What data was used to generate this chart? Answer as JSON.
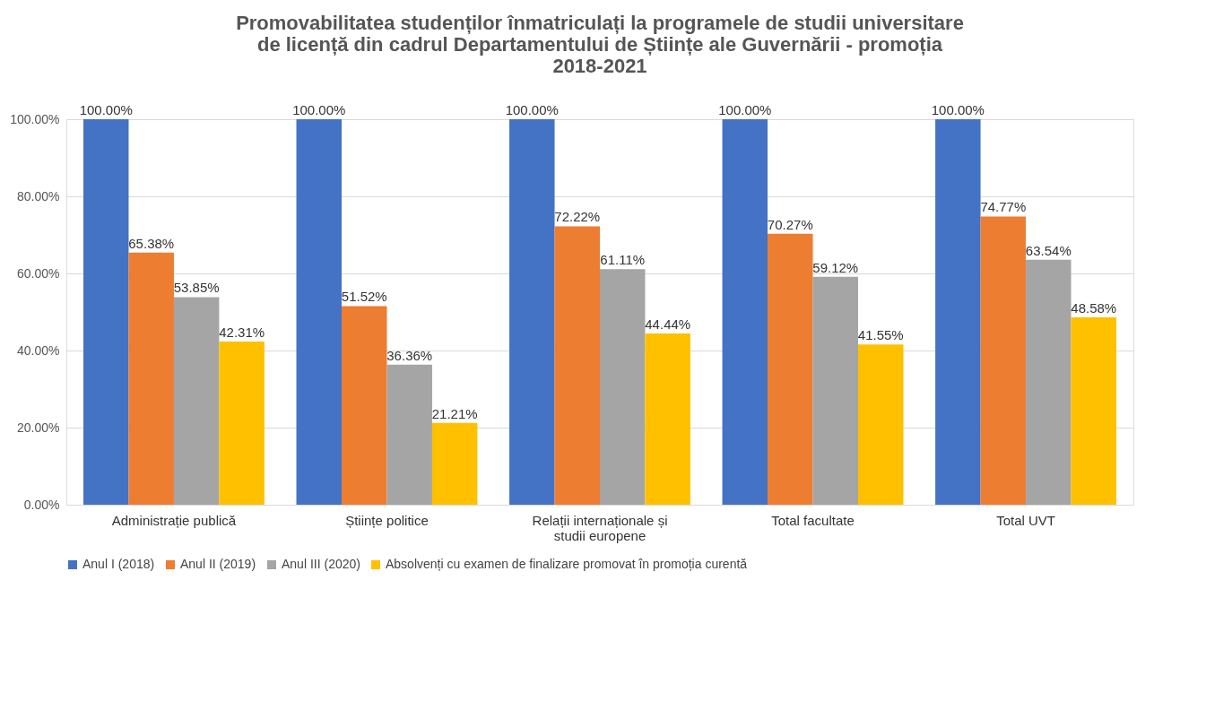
{
  "chart_data": {
    "type": "bar",
    "title": "Promovabilitatea studenților înmatriculați la programele de studii universitare de licență din cadrul Departamentului de Științe ale Guvernării - promoția 2018-2021",
    "categories": [
      "Administrație publică",
      "Științe politice",
      "Relații internaționale și studii europene",
      "Total facultate",
      "Total UVT"
    ],
    "series": [
      {
        "name": "Anul I (2018)",
        "color": "#4472c4",
        "values": [
          100,
          100,
          100,
          100,
          100
        ],
        "value_labels": [
          "100.00%",
          "100.00%",
          "100.00%",
          "100.00%",
          "100.00%"
        ]
      },
      {
        "name": "Anul II (2019)",
        "color": "#ed7d31",
        "values": [
          65.38,
          51.52,
          72.22,
          70.27,
          74.77
        ],
        "value_labels": [
          "65.38%",
          "51.52%",
          "72.22%",
          "70.27%",
          "74.77%"
        ]
      },
      {
        "name": "Anul III (2020)",
        "color": "#a5a5a5",
        "values": [
          53.85,
          36.36,
          61.11,
          59.12,
          63.54
        ],
        "value_labels": [
          "53.85%",
          "36.36%",
          "61.11%",
          "59.12%",
          "63.54%"
        ]
      },
      {
        "name": "Absolvenți cu examen de finalizare promovat în promoția curentă",
        "color": "#ffc000",
        "values": [
          42.31,
          21.21,
          44.44,
          41.55,
          48.58
        ],
        "value_labels": [
          "42.31%",
          "21.21%",
          "44.44%",
          "41.55%",
          "48.58%"
        ]
      }
    ],
    "ylim": [
      0,
      100
    ],
    "yticks": [
      {
        "value": 0,
        "label": "0.00%"
      },
      {
        "value": 20,
        "label": "20.00%"
      },
      {
        "value": 40,
        "label": "40.00%"
      },
      {
        "value": 60,
        "label": "60.00%"
      },
      {
        "value": 80,
        "label": "80.00%"
      },
      {
        "value": 100,
        "label": "100.00%"
      }
    ],
    "grid": "y",
    "legend": "bottom"
  }
}
